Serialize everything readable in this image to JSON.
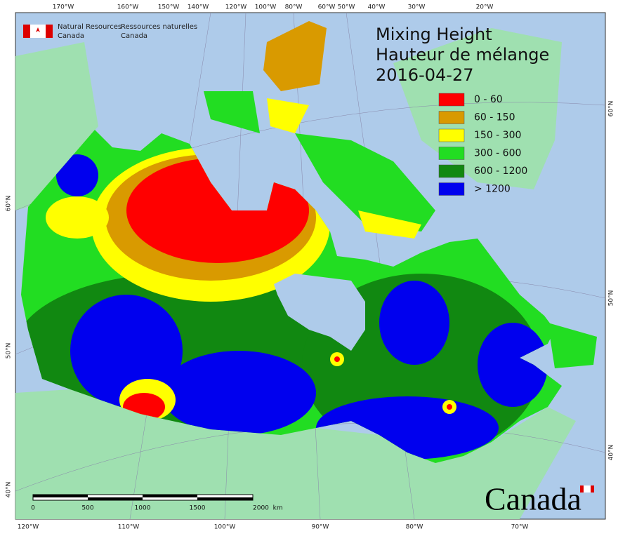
{
  "header": {
    "agency_en": [
      "Natural Resources",
      "Canada"
    ],
    "agency_fr": [
      "Ressources naturelles",
      "Canada"
    ]
  },
  "title": [
    "Mixing Height",
    "Hauteur de mélange",
    "2016-04-27"
  ],
  "legend": [
    {
      "label": "0 - 60",
      "color": "#ff0000"
    },
    {
      "label": "60 - 150",
      "color": "#d99a00"
    },
    {
      "label": "150 - 300",
      "color": "#ffff00"
    },
    {
      "label": "300 - 600",
      "color": "#22dd22"
    },
    {
      "label": "600 - 1200",
      "color": "#118811"
    },
    {
      "label": "> 1200",
      "color": "#0000ee"
    }
  ],
  "top_axis": [
    "170°W",
    "160°W",
    "150°W",
    "140°W",
    "120°W",
    "100°W",
    "80°W",
    "60°W",
    "50°W",
    "40°W",
    "30°W",
    "20°W"
  ],
  "bottom_axis": [
    "120°W",
    "110°W",
    "100°W",
    "90°W",
    "80°W",
    "70°W"
  ],
  "left_axis": [
    "60°N",
    "50°N",
    "40°N"
  ],
  "right_axis": [
    "60°N",
    "50°N",
    "40°N"
  ],
  "scale_bar": [
    "0",
    "500",
    "1000",
    "1500",
    "2000  km"
  ],
  "wordmark": "Canada"
}
